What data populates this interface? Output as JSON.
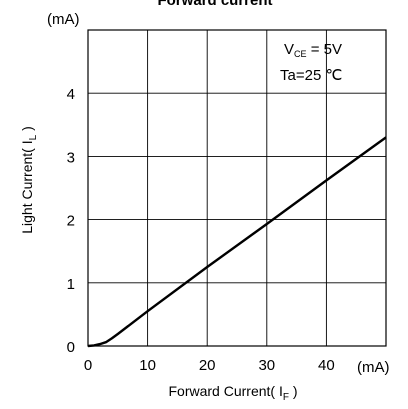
{
  "chart_data": {
    "type": "line",
    "title": "Forward current",
    "xlabel": "Forward Current( I",
    "xlabel_sub": "F",
    "xlabel_end": " )",
    "x_unit": "(mA)",
    "ylabel": "Light Current( I",
    "ylabel_sub": "L",
    "ylabel_end": " )",
    "y_unit": "(mA)",
    "xlim": [
      0,
      50
    ],
    "ylim": [
      0,
      5
    ],
    "x_ticks": [
      "0",
      "10",
      "20",
      "30",
      "40"
    ],
    "y_ticks": [
      "0",
      "1",
      "2",
      "3",
      "4"
    ],
    "grid": true,
    "annotation": {
      "vce_main": "V",
      "vce_sub": "CE",
      "vce_value": " = 5V",
      "ta": "Ta=25 ℃"
    },
    "series": [
      {
        "x": [
          0,
          1,
          2,
          3,
          4,
          5,
          10,
          20,
          30,
          40,
          50
        ],
        "y": [
          0,
          0.01,
          0.03,
          0.06,
          0.12,
          0.19,
          0.55,
          1.25,
          1.93,
          2.62,
          3.3
        ]
      }
    ]
  }
}
